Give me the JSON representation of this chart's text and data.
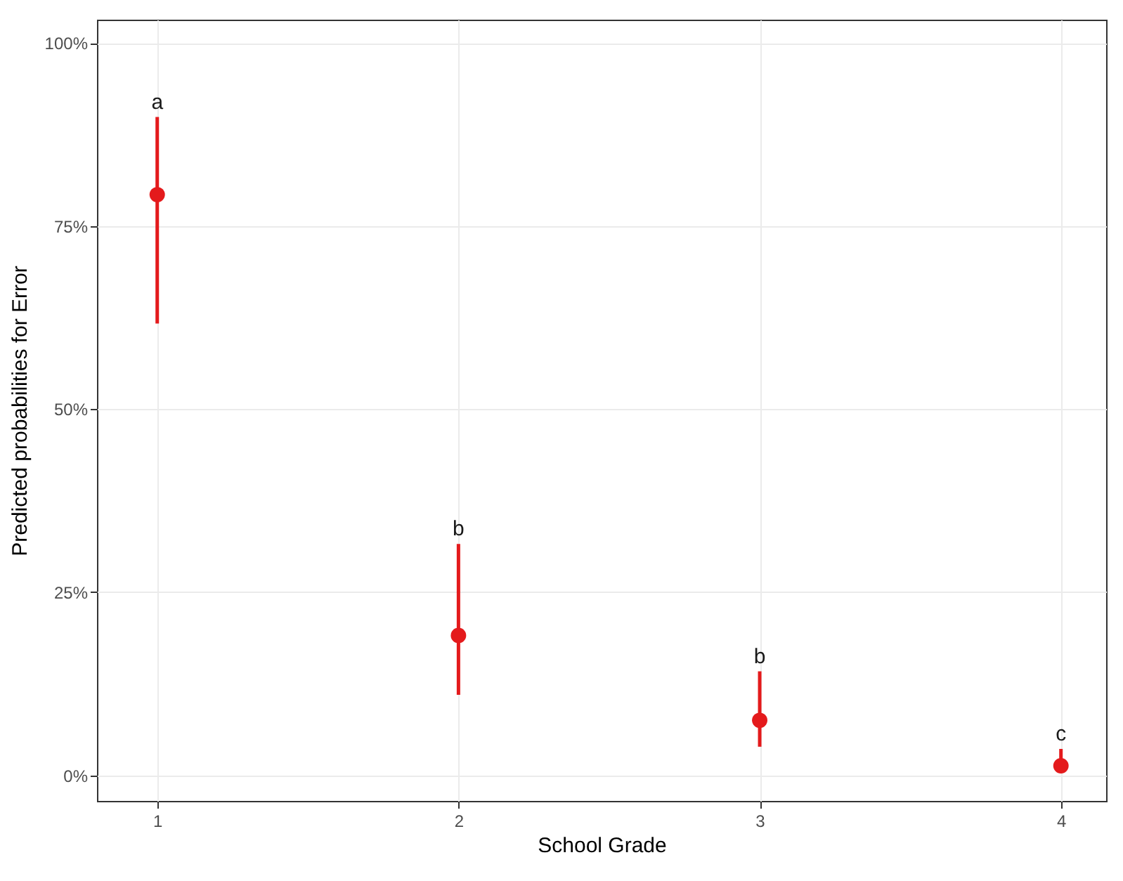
{
  "chart_data": {
    "type": "scatter",
    "xlabel": "School Grade",
    "ylabel": "Predicted probabilities for Error",
    "x": [
      1,
      2,
      3,
      4
    ],
    "series": [
      {
        "color": "#e41a1c",
        "values": [
          79.3,
          19.1,
          7.5,
          1.3
        ],
        "errors": [
          [
            61.7,
            89.9
          ],
          [
            11.0,
            31.6
          ],
          [
            3.9,
            14.2
          ],
          [
            1.0,
            3.6
          ]
        ]
      }
    ],
    "xlim": [
      0.8,
      4.15
    ],
    "xticks": [
      1,
      2,
      3,
      4
    ],
    "ylim": [
      -3.5,
      103.2
    ],
    "yticks": [
      {
        "value": 0,
        "label": "0%"
      },
      {
        "value": 25,
        "label": "25%"
      },
      {
        "value": 50,
        "label": "50%"
      },
      {
        "value": 75,
        "label": "75%"
      },
      {
        "value": 100,
        "label": "100%"
      }
    ],
    "annotations": [
      {
        "text": "a",
        "x": 1,
        "y": 89.9
      },
      {
        "text": "b",
        "x": 2,
        "y": 31.6
      },
      {
        "text": "b",
        "x": 3,
        "y": 14.2
      },
      {
        "text": "c",
        "x": 4,
        "y": 3.6
      }
    ],
    "grid": true,
    "marker": "circle"
  }
}
